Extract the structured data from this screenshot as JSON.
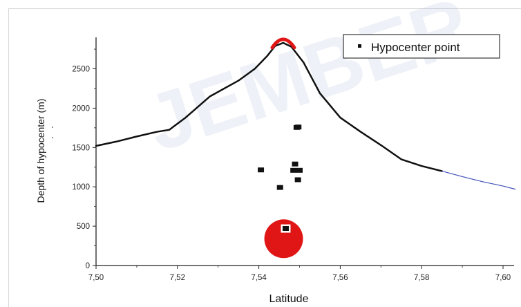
{
  "chart_data": {
    "type": "scatter",
    "title": "",
    "xlabel": "Latitude",
    "ylabel": "Depth of hypocenter (m)",
    "xlim": [
      7.5,
      7.6
    ],
    "ylim": [
      0,
      2900
    ],
    "x_ticks": [
      "7,50",
      "7,52",
      "7,54",
      "7,56",
      "7,58",
      "7,60"
    ],
    "y_ticks": [
      "0",
      "500",
      "1000",
      "1500",
      "2000",
      "2500"
    ],
    "legend": {
      "position": "top-right",
      "entries": [
        "Hypocenter point"
      ]
    },
    "series": [
      {
        "name": "Hypocenter point",
        "marker": "square",
        "color": "#111111",
        "points": [
          {
            "x": 7.5405,
            "y": 1215
          },
          {
            "x": 7.5452,
            "y": 992
          },
          {
            "x": 7.5493,
            "y": 1755
          },
          {
            "x": 7.5497,
            "y": 1760
          },
          {
            "x": 7.5489,
            "y": 1290
          },
          {
            "x": 7.5485,
            "y": 1210
          },
          {
            "x": 7.55,
            "y": 1210
          },
          {
            "x": 7.5496,
            "y": 1090
          },
          {
            "x": 7.5466,
            "y": 470
          }
        ]
      }
    ],
    "profile_line": {
      "color": "#111111",
      "tail_color": "#3f4fb8",
      "points": [
        {
          "x": 7.5,
          "y": 1520
        },
        {
          "x": 7.505,
          "y": 1575
        },
        {
          "x": 7.51,
          "y": 1640
        },
        {
          "x": 7.515,
          "y": 1700
        },
        {
          "x": 7.518,
          "y": 1725
        },
        {
          "x": 7.522,
          "y": 1880
        },
        {
          "x": 7.528,
          "y": 2150
        },
        {
          "x": 7.535,
          "y": 2350
        },
        {
          "x": 7.539,
          "y": 2500
        },
        {
          "x": 7.542,
          "y": 2660
        },
        {
          "x": 7.544,
          "y": 2790
        },
        {
          "x": 7.546,
          "y": 2830
        },
        {
          "x": 7.548,
          "y": 2780
        },
        {
          "x": 7.551,
          "y": 2580
        },
        {
          "x": 7.555,
          "y": 2190
        },
        {
          "x": 7.56,
          "y": 1880
        },
        {
          "x": 7.565,
          "y": 1700
        },
        {
          "x": 7.57,
          "y": 1530
        },
        {
          "x": 7.575,
          "y": 1350
        },
        {
          "x": 7.58,
          "y": 1265
        },
        {
          "x": 7.585,
          "y": 1200
        },
        {
          "x": 7.59,
          "y": 1130
        },
        {
          "x": 7.595,
          "y": 1065
        },
        {
          "x": 7.6,
          "y": 1010
        },
        {
          "x": 7.603,
          "y": 970
        }
      ]
    },
    "highlights": [
      {
        "shape": "circle",
        "x": 7.5461,
        "y": 340,
        "color": "#e01515"
      },
      {
        "shape": "peak",
        "x": 7.546,
        "y": 2840,
        "color": "#e01515"
      }
    ]
  },
  "watermark": {
    "text": "JEMBER",
    "color": "#9baacd"
  }
}
